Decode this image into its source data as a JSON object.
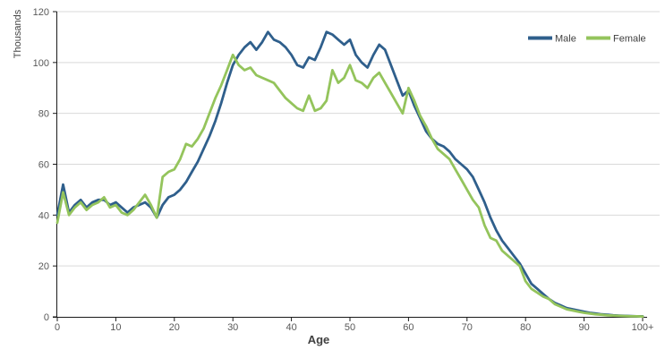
{
  "chart_data": {
    "type": "line",
    "title": "",
    "xlabel": "Age",
    "ylabel": "Thousands",
    "x_range": [
      0,
      100
    ],
    "x_note": "array index of each series value = age in years, 0 through 100+",
    "x_tick_labels": [
      "0",
      "10",
      "20",
      "30",
      "40",
      "50",
      "60",
      "70",
      "80",
      "90",
      "100+"
    ],
    "x_tick_values": [
      0,
      10,
      20,
      30,
      40,
      50,
      60,
      70,
      80,
      90,
      100
    ],
    "y_tick_values": [
      0,
      20,
      40,
      60,
      80,
      100,
      120
    ],
    "ylim": [
      0,
      120
    ],
    "grid": "horizontal",
    "legend_position": "top-right",
    "background_color": "#ffffff",
    "gridline_color": "#d9d9d9",
    "axis_line_color": "#1a1a1a",
    "tick_text_color": "#595959",
    "series": [
      {
        "name": "Male",
        "color": "#2f5f8c",
        "values": [
          40,
          52,
          41,
          44,
          46,
          43,
          45,
          46,
          46,
          44,
          45,
          43,
          41,
          43,
          44,
          45,
          43,
          39,
          44,
          47,
          48,
          50,
          53,
          57,
          61,
          66,
          71,
          77,
          84,
          92,
          99,
          103,
          106,
          108,
          105,
          108,
          112,
          109,
          108,
          106,
          103,
          99,
          98,
          102,
          101,
          106,
          112,
          111,
          109,
          107,
          109,
          103,
          100,
          98,
          103,
          107,
          105,
          99,
          93,
          87,
          89,
          83,
          78,
          73,
          70,
          68,
          67,
          65,
          62,
          60,
          58,
          55,
          50,
          45,
          39,
          34,
          30,
          27,
          24,
          21,
          17,
          13,
          11,
          9,
          7,
          5.5,
          4.5,
          3.5,
          3,
          2.5,
          2,
          1.6,
          1.3,
          1,
          0.8,
          0.6,
          0.5,
          0.4,
          0.3,
          0.2,
          0.2
        ]
      },
      {
        "name": "Female",
        "color": "#94c45c",
        "values": [
          37,
          49,
          40,
          43,
          45,
          42,
          44,
          45,
          47,
          43,
          44,
          41,
          40,
          42,
          45,
          48,
          44,
          39,
          55,
          57,
          58,
          62,
          68,
          67,
          70,
          74,
          80,
          86,
          91,
          97,
          103,
          99,
          97,
          98,
          95,
          94,
          93,
          92,
          89,
          86,
          84,
          82,
          81,
          87,
          81,
          82,
          85,
          97,
          92,
          94,
          99,
          93,
          92,
          90,
          94,
          96,
          92,
          88,
          84,
          80,
          90,
          85,
          79,
          75,
          70,
          66,
          64,
          62,
          58,
          54,
          50,
          46,
          43,
          36,
          31,
          30,
          26,
          24,
          22,
          20,
          14,
          11,
          9.5,
          8,
          7,
          5,
          4,
          3,
          2.5,
          2,
          1.6,
          1.3,
          1,
          0.8,
          0.6,
          0.5,
          0.4,
          0.3,
          0.2,
          0.2,
          0.1
        ]
      }
    ]
  }
}
